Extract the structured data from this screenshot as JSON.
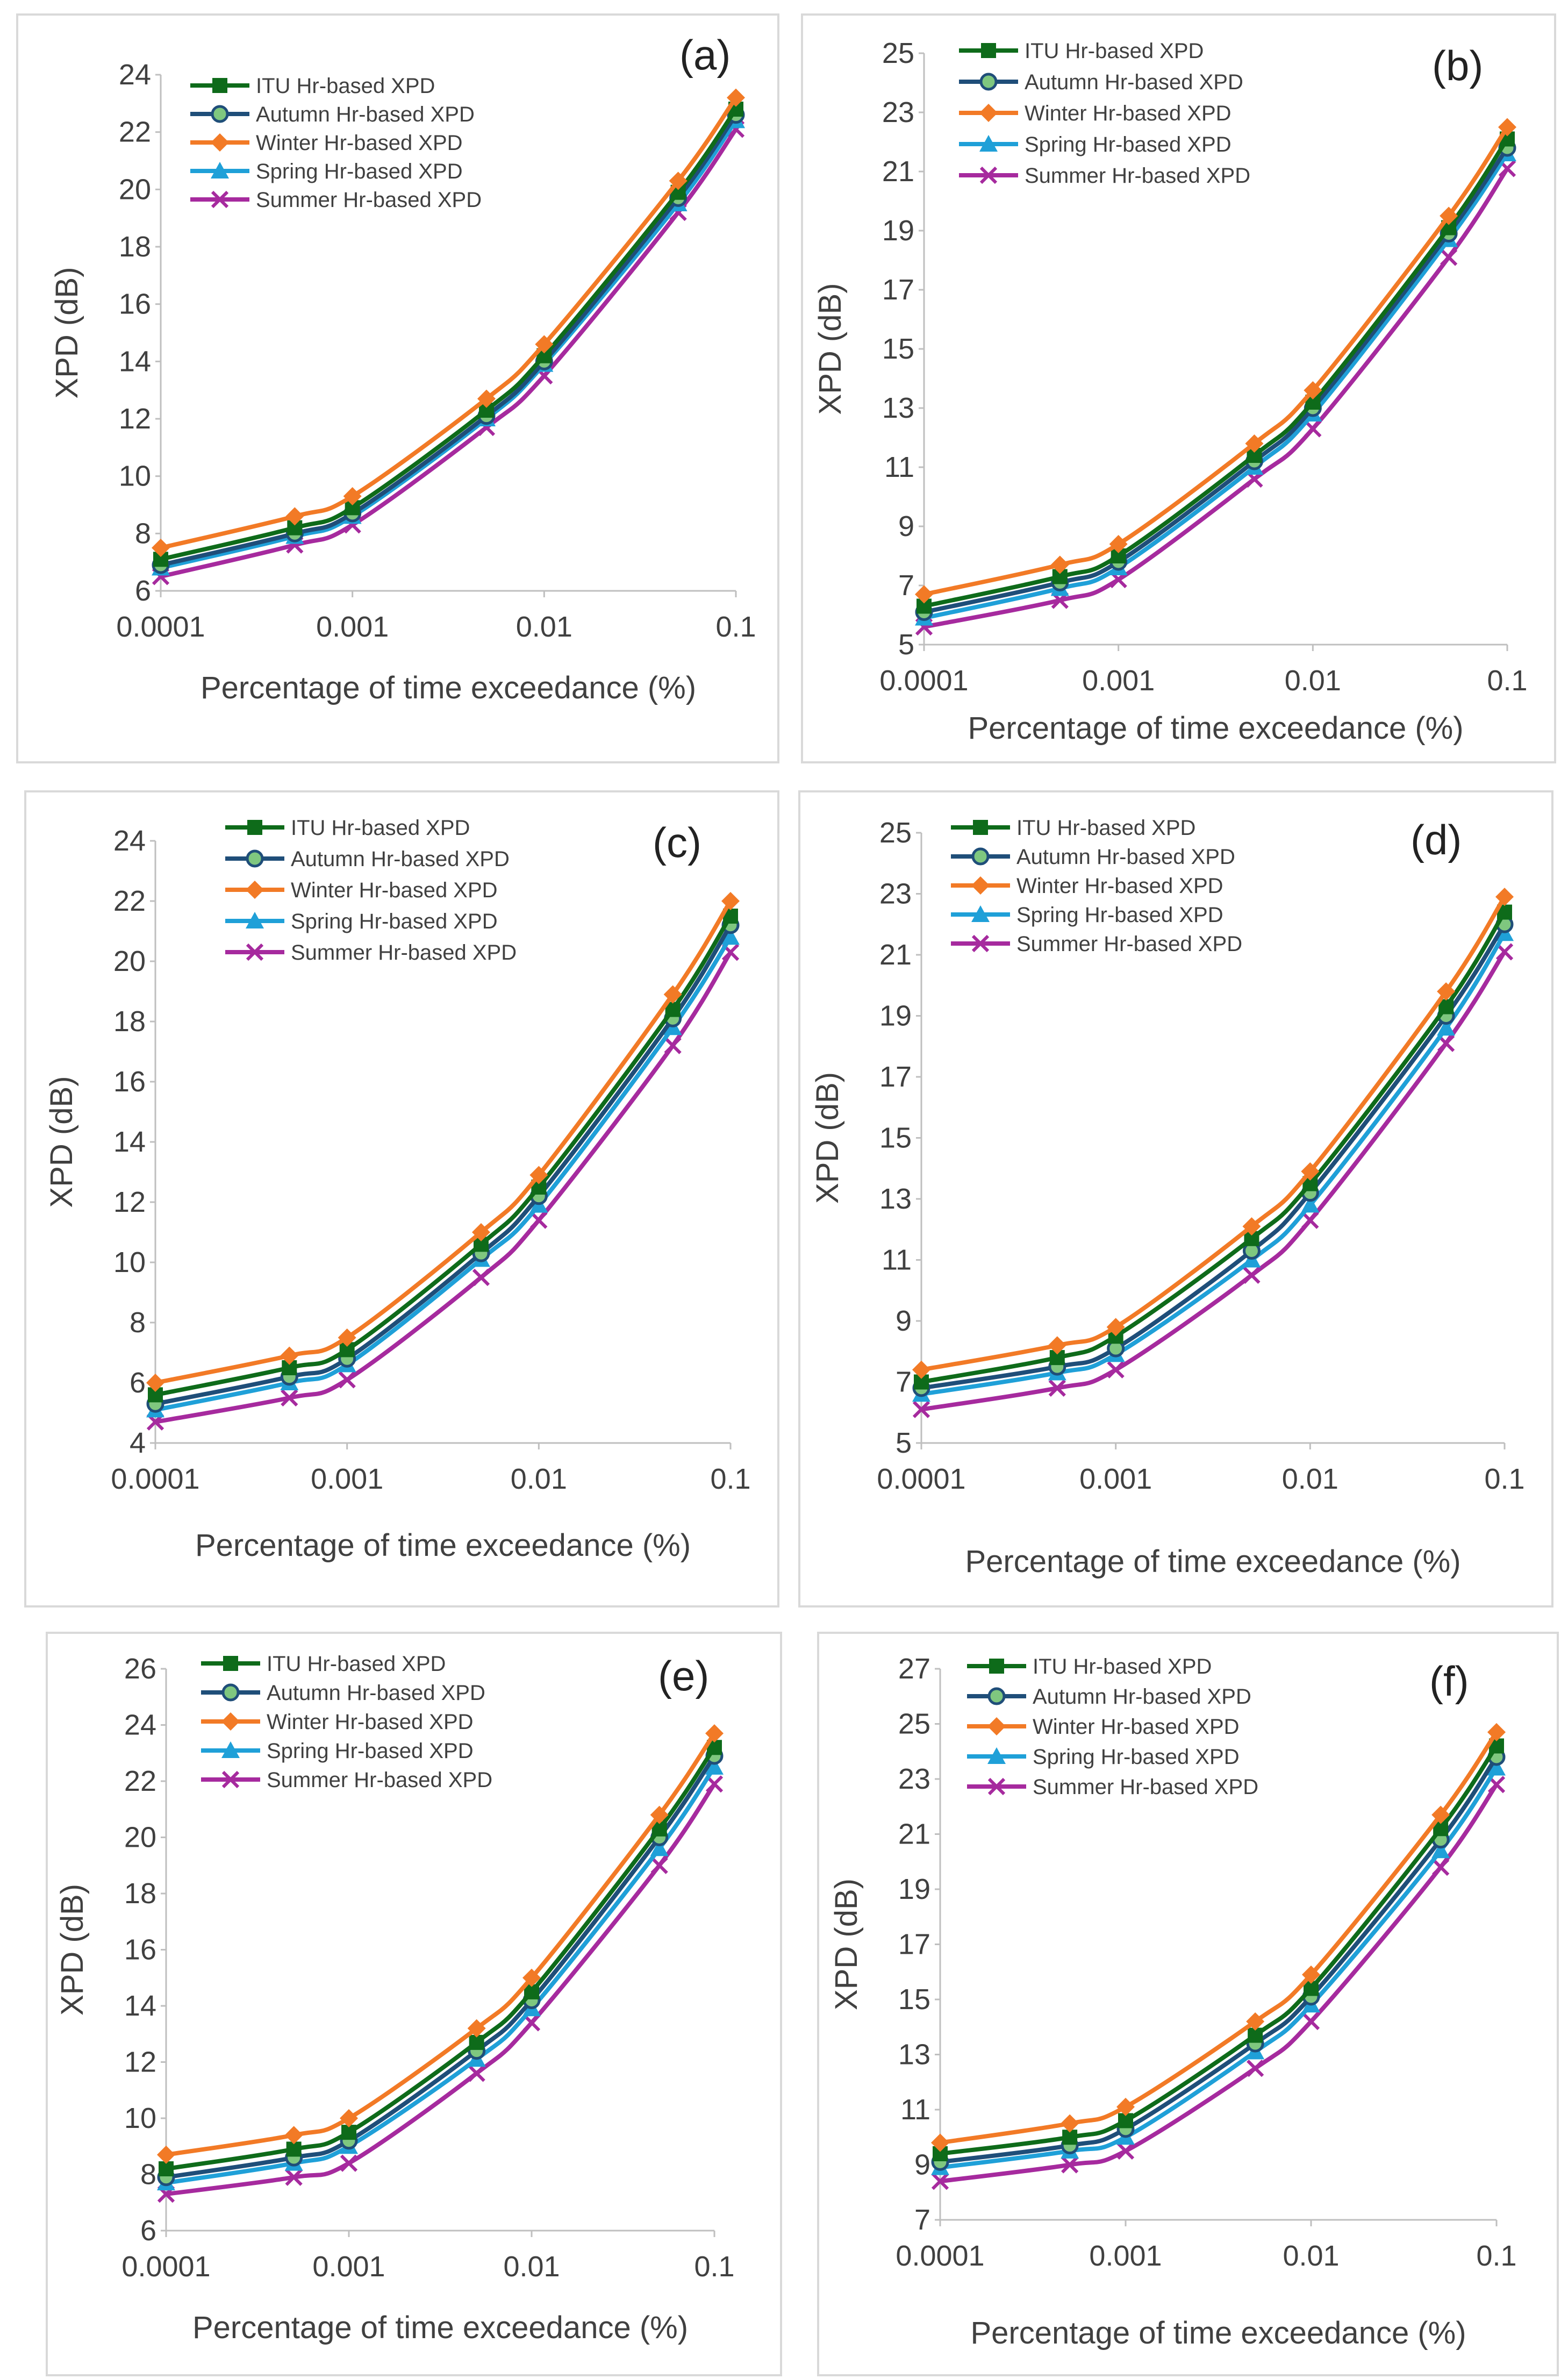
{
  "figure": "XPD vs percentage of time exceedance, six panels",
  "series_meta": [
    {
      "name": "ITU Hr-based XPD",
      "color": "#0e6b1a",
      "marker": "square"
    },
    {
      "name": "Autumn Hr-based XPD",
      "color": "#1f4e79",
      "marker": "circle"
    },
    {
      "name": "Winter Hr-based XPD",
      "color": "#f27a26",
      "marker": "diamond"
    },
    {
      "name": "Spring Hr-based XPD",
      "color": "#1fa0d8",
      "marker": "triangle"
    },
    {
      "name": "Summer Hr-based XPD",
      "color": "#a62a9e",
      "marker": "x"
    }
  ],
  "chart_data": [
    {
      "type": "line",
      "panel_label": "(a)",
      "x": [
        0.0001,
        0.0005,
        0.001,
        0.005,
        0.01,
        0.05,
        0.1
      ],
      "x_tick_labels": [
        "0.0001",
        "0.001",
        "0.01",
        "0.1"
      ],
      "xlabel": "Percentage of time exceedance (%)",
      "ylabel": "XPD (dB)",
      "ylim": [
        6,
        24
      ],
      "yticks": [
        6,
        8,
        10,
        12,
        14,
        16,
        18,
        20,
        22,
        24
      ],
      "xscale": "log",
      "series": [
        {
          "name": "ITU Hr-based XPD",
          "values": [
            7.1,
            8.2,
            8.9,
            12.3,
            14.2,
            19.9,
            22.8
          ]
        },
        {
          "name": "Autumn Hr-based XPD",
          "values": [
            6.9,
            8.0,
            8.7,
            12.1,
            14.0,
            19.7,
            22.6
          ]
        },
        {
          "name": "Winter Hr-based XPD",
          "values": [
            7.5,
            8.6,
            9.3,
            12.7,
            14.6,
            20.3,
            23.2
          ]
        },
        {
          "name": "Spring Hr-based XPD",
          "values": [
            6.8,
            7.9,
            8.6,
            12.0,
            13.9,
            19.5,
            22.4
          ]
        },
        {
          "name": "Summer Hr-based XPD",
          "values": [
            6.5,
            7.6,
            8.3,
            11.7,
            13.5,
            19.2,
            22.1
          ]
        }
      ]
    },
    {
      "type": "line",
      "panel_label": "(b)",
      "x": [
        0.0001,
        0.0005,
        0.001,
        0.005,
        0.01,
        0.05,
        0.1
      ],
      "x_tick_labels": [
        "0.0001",
        "0.001",
        "0.01",
        "0.1"
      ],
      "xlabel": "Percentage of time exceedance (%)",
      "ylabel": "XPD (dB)",
      "ylim": [
        5,
        25
      ],
      "yticks": [
        5,
        7,
        9,
        11,
        13,
        15,
        17,
        19,
        21,
        23,
        25
      ],
      "xscale": "log",
      "series": [
        {
          "name": "ITU Hr-based XPD",
          "values": [
            6.3,
            7.3,
            8.0,
            11.4,
            13.2,
            19.1,
            22.1
          ]
        },
        {
          "name": "Autumn Hr-based XPD",
          "values": [
            6.1,
            7.1,
            7.8,
            11.2,
            13.0,
            18.9,
            21.8
          ]
        },
        {
          "name": "Winter Hr-based XPD",
          "values": [
            6.7,
            7.7,
            8.4,
            11.8,
            13.6,
            19.5,
            22.5
          ]
        },
        {
          "name": "Spring Hr-based XPD",
          "values": [
            5.9,
            6.9,
            7.6,
            11.0,
            12.8,
            18.7,
            21.6
          ]
        },
        {
          "name": "Summer Hr-based XPD",
          "values": [
            5.6,
            6.5,
            7.2,
            10.6,
            12.3,
            18.1,
            21.1
          ]
        }
      ]
    },
    {
      "type": "line",
      "panel_label": "(c)",
      "x": [
        0.0001,
        0.0005,
        0.001,
        0.005,
        0.01,
        0.05,
        0.1
      ],
      "x_tick_labels": [
        "0.0001",
        "0.001",
        "0.01",
        "0.1"
      ],
      "xlabel": "Percentage of time exceedance (%)",
      "ylabel": "XPD (dB)",
      "ylim": [
        4,
        24
      ],
      "yticks": [
        4,
        6,
        8,
        10,
        12,
        14,
        16,
        18,
        20,
        22,
        24
      ],
      "xscale": "log",
      "series": [
        {
          "name": "ITU Hr-based XPD",
          "values": [
            5.6,
            6.5,
            7.1,
            10.6,
            12.5,
            18.4,
            21.5
          ]
        },
        {
          "name": "Autumn Hr-based XPD",
          "values": [
            5.3,
            6.2,
            6.8,
            10.3,
            12.2,
            18.1,
            21.2
          ]
        },
        {
          "name": "Winter Hr-based XPD",
          "values": [
            6.0,
            6.9,
            7.5,
            11.0,
            12.9,
            18.9,
            22.0
          ]
        },
        {
          "name": "Spring Hr-based XPD",
          "values": [
            5.1,
            6.0,
            6.6,
            10.1,
            11.9,
            17.8,
            20.8
          ]
        },
        {
          "name": "Summer Hr-based XPD",
          "values": [
            4.7,
            5.5,
            6.1,
            9.5,
            11.4,
            17.2,
            20.3
          ]
        }
      ]
    },
    {
      "type": "line",
      "panel_label": "(d)",
      "x": [
        0.0001,
        0.0005,
        0.001,
        0.005,
        0.01,
        0.05,
        0.1
      ],
      "x_tick_labels": [
        "0.0001",
        "0.001",
        "0.01",
        "0.1"
      ],
      "xlabel": "Percentage of time exceedance (%)",
      "ylabel": "XPD (dB)",
      "ylim": [
        5,
        25
      ],
      "yticks": [
        5,
        7,
        9,
        11,
        13,
        15,
        17,
        19,
        21,
        23,
        25
      ],
      "xscale": "log",
      "series": [
        {
          "name": "ITU Hr-based XPD",
          "values": [
            7.0,
            7.8,
            8.5,
            11.7,
            13.5,
            19.3,
            22.4
          ]
        },
        {
          "name": "Autumn Hr-based XPD",
          "values": [
            6.8,
            7.5,
            8.1,
            11.3,
            13.2,
            19.0,
            22.0
          ]
        },
        {
          "name": "Winter Hr-based XPD",
          "values": [
            7.4,
            8.2,
            8.8,
            12.1,
            13.9,
            19.8,
            22.9
          ]
        },
        {
          "name": "Spring Hr-based XPD",
          "values": [
            6.6,
            7.3,
            7.9,
            11.0,
            12.8,
            18.6,
            21.7
          ]
        },
        {
          "name": "Summer Hr-based XPD",
          "values": [
            6.1,
            6.8,
            7.4,
            10.5,
            12.3,
            18.1,
            21.1
          ]
        }
      ]
    },
    {
      "type": "line",
      "panel_label": "(e)",
      "x": [
        0.0001,
        0.0005,
        0.001,
        0.005,
        0.01,
        0.05,
        0.1
      ],
      "x_tick_labels": [
        "0.0001",
        "0.001",
        "0.01",
        "0.1"
      ],
      "xlabel": "Percentage of time exceedance (%)",
      "ylabel": "XPD (dB)",
      "ylim": [
        6,
        26
      ],
      "yticks": [
        6,
        8,
        10,
        12,
        14,
        16,
        18,
        20,
        22,
        24,
        26
      ],
      "xscale": "log",
      "series": [
        {
          "name": "ITU Hr-based XPD",
          "values": [
            8.2,
            8.9,
            9.5,
            12.7,
            14.5,
            20.3,
            23.2
          ]
        },
        {
          "name": "Autumn Hr-based XPD",
          "values": [
            7.9,
            8.6,
            9.2,
            12.4,
            14.2,
            20.0,
            22.9
          ]
        },
        {
          "name": "Winter Hr-based XPD",
          "values": [
            8.7,
            9.4,
            10.0,
            13.2,
            15.0,
            20.8,
            23.7
          ]
        },
        {
          "name": "Spring Hr-based XPD",
          "values": [
            7.7,
            8.4,
            9.0,
            12.1,
            13.9,
            19.6,
            22.5
          ]
        },
        {
          "name": "Summer Hr-based XPD",
          "values": [
            7.3,
            7.9,
            8.4,
            11.6,
            13.4,
            19.0,
            21.9
          ]
        }
      ]
    },
    {
      "type": "line",
      "panel_label": "(f)",
      "x": [
        0.0001,
        0.0005,
        0.001,
        0.005,
        0.01,
        0.05,
        0.1
      ],
      "x_tick_labels": [
        "0.0001",
        "0.001",
        "0.01",
        "0.1"
      ],
      "xlabel": "Percentage of time exceedance (%)",
      "ylabel": "XPD (dB)",
      "ylim": [
        7,
        27
      ],
      "yticks": [
        7,
        9,
        11,
        13,
        15,
        17,
        19,
        21,
        23,
        25,
        27
      ],
      "xscale": "log",
      "series": [
        {
          "name": "ITU Hr-based XPD",
          "values": [
            9.4,
            10.0,
            10.6,
            13.7,
            15.4,
            21.2,
            24.2
          ]
        },
        {
          "name": "Autumn Hr-based XPD",
          "values": [
            9.1,
            9.7,
            10.3,
            13.4,
            15.1,
            20.8,
            23.8
          ]
        },
        {
          "name": "Winter Hr-based XPD",
          "values": [
            9.8,
            10.5,
            11.1,
            14.2,
            15.9,
            21.7,
            24.7
          ]
        },
        {
          "name": "Spring Hr-based XPD",
          "values": [
            8.9,
            9.5,
            10.0,
            13.1,
            14.8,
            20.4,
            23.4
          ]
        },
        {
          "name": "Summer Hr-based XPD",
          "values": [
            8.4,
            9.0,
            9.5,
            12.5,
            14.2,
            19.8,
            22.8
          ]
        }
      ]
    }
  ]
}
